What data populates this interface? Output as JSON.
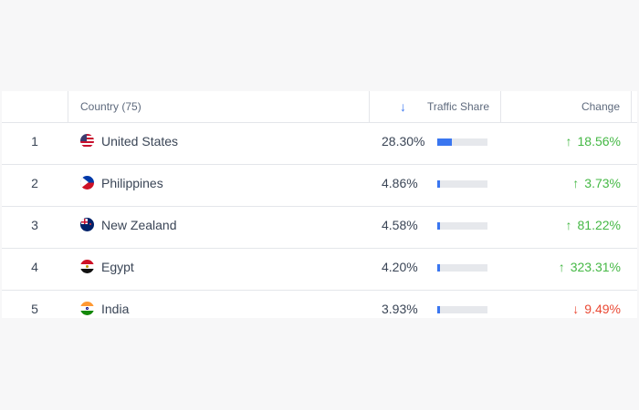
{
  "header": {
    "rank_label": "",
    "country_label": "Country (75)",
    "share_label": "Traffic Share",
    "change_label": "Change",
    "sort_icon": "arrow-down-icon"
  },
  "rows": [
    {
      "rank": "1",
      "country": "United States",
      "flag": "us-flag-icon",
      "share": "28.30%",
      "share_fraction": 0.283,
      "change": "18.56%",
      "direction": "up"
    },
    {
      "rank": "2",
      "country": "Philippines",
      "flag": "ph-flag-icon",
      "share": "4.86%",
      "share_fraction": 0.0486,
      "change": "3.73%",
      "direction": "up"
    },
    {
      "rank": "3",
      "country": "New Zealand",
      "flag": "nz-flag-icon",
      "share": "4.58%",
      "share_fraction": 0.0458,
      "change": "81.22%",
      "direction": "up"
    },
    {
      "rank": "4",
      "country": "Egypt",
      "flag": "eg-flag-icon",
      "share": "4.20%",
      "share_fraction": 0.042,
      "change": "323.31%",
      "direction": "up"
    },
    {
      "rank": "5",
      "country": "India",
      "flag": "in-flag-icon",
      "share": "3.93%",
      "share_fraction": 0.0393,
      "change": "9.49%",
      "direction": "down"
    }
  ],
  "colors": {
    "accent": "#3a76f0",
    "up": "#45b845",
    "down": "#ea4a35"
  }
}
